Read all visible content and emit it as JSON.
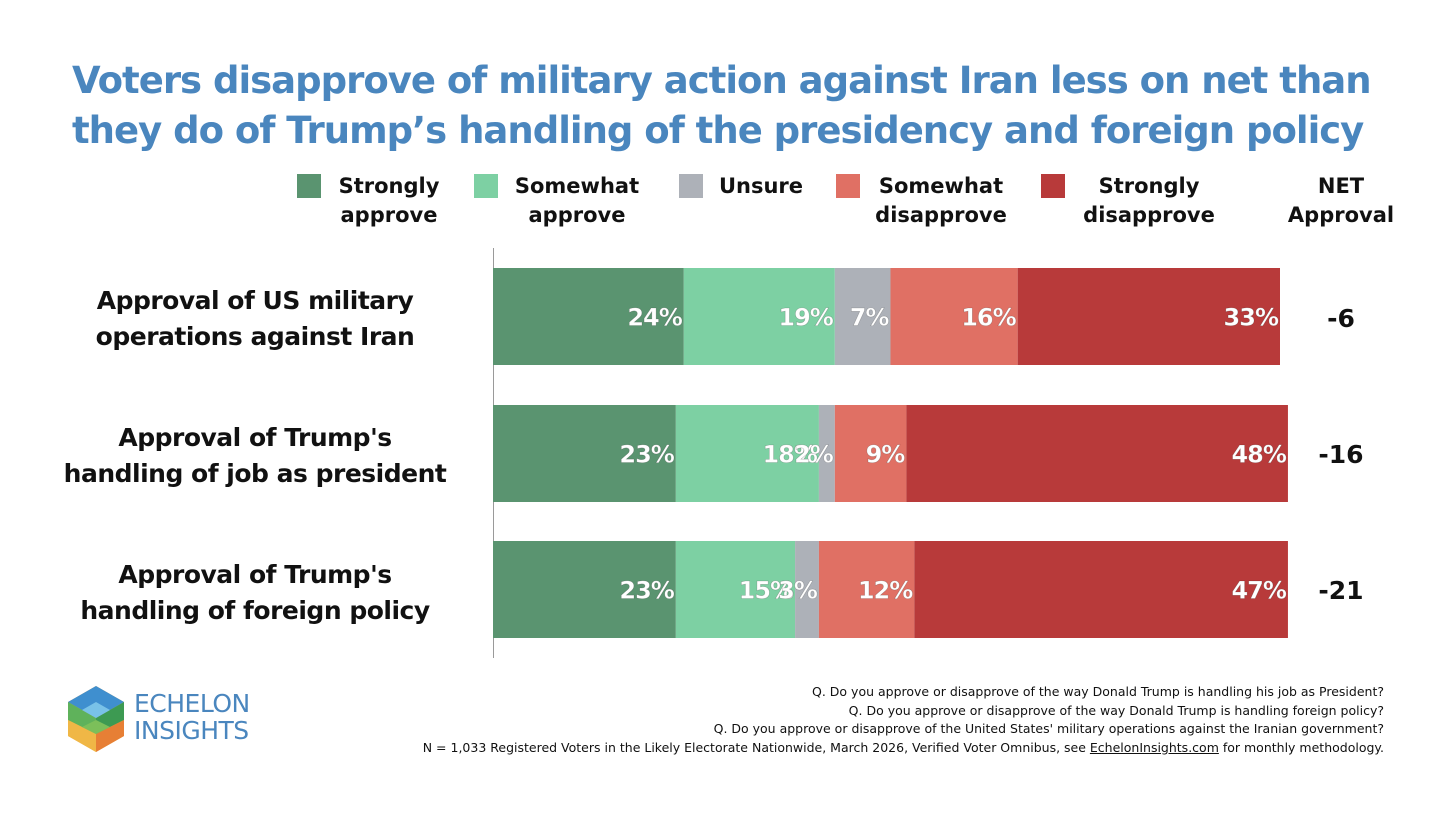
{
  "chart_data": {
    "type": "bar",
    "orientation": "horizontal",
    "stacked": true,
    "title": [
      "Voters disapprove of military action against Iran less on net than",
      "they do of Trump’s handling of the presidency and foreign policy"
    ],
    "categories": [
      [
        "Approval of US military",
        "operations against Iran"
      ],
      [
        "Approval of Trump's",
        "handling of job as president"
      ],
      [
        "Approval of Trump's",
        "handling of foreign policy"
      ]
    ],
    "series": [
      {
        "name": [
          "Strongly",
          "approve"
        ],
        "color": "#5a9470",
        "values": [
          24,
          23,
          23
        ],
        "labels": [
          "24%",
          "23%",
          "23%"
        ]
      },
      {
        "name": [
          "Somewhat",
          "approve"
        ],
        "color": "#7dd0a3",
        "values": [
          19,
          18,
          15
        ],
        "labels": [
          "19%",
          "18%",
          "15%"
        ]
      },
      {
        "name": [
          "Unsure"
        ],
        "color": "#adb1b8",
        "values": [
          7,
          2,
          3
        ],
        "labels": [
          "7%",
          "2%",
          "3%"
        ]
      },
      {
        "name": [
          "Somewhat",
          "disapprove"
        ],
        "color": "#e07064",
        "values": [
          16,
          9,
          12
        ],
        "labels": [
          "16%",
          "9%",
          "12%"
        ]
      },
      {
        "name": [
          "Strongly",
          "disapprove"
        ],
        "color": "#b83a3a",
        "values": [
          33,
          48,
          47
        ],
        "labels": [
          "33%",
          "48%",
          "47%"
        ]
      }
    ],
    "net_header": [
      "NET",
      "Approval"
    ],
    "net_values": [
      "-6",
      "-16",
      "-21"
    ],
    "xlim": [
      0,
      99
    ]
  },
  "logo": {
    "line1": "ECHELON",
    "line2": "INSIGHTS"
  },
  "footnotes": {
    "q1": "Q. Do you approve or disapprove of the way Donald Trump is handling his job as President?",
    "q2": "Q. Do you approve or disapprove of the way Donald Trump is handling foreign policy?",
    "q3": "Q. Do you approve or disapprove of the United States' military operations against the Iranian government?",
    "n_prefix": "N = 1,033 Registered Voters in the Likely Electorate Nationwide, March 2026, Verified Voter Omnibus, see ",
    "n_link": "EchelonInsights.com",
    "n_suffix": " for monthly methodology."
  }
}
